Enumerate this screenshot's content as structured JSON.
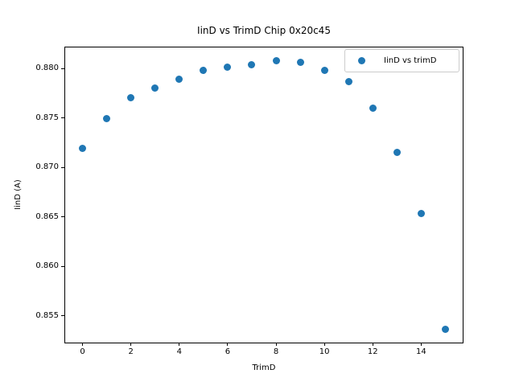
{
  "chart_data": {
    "type": "scatter",
    "title": "IinD vs TrimD Chip 0x20c45",
    "xlabel": "TrimD",
    "ylabel": "IinD (A)",
    "legend": {
      "entries": [
        "IinD vs trimD"
      ],
      "position": "upper right"
    },
    "series": [
      {
        "name": "IinD vs trimD",
        "marker": "circle",
        "color": "#1f77b4",
        "x": [
          0,
          1,
          2,
          3,
          4,
          5,
          6,
          7,
          8,
          9,
          10,
          11,
          12,
          13,
          14,
          15
        ],
        "y": [
          0.8719,
          0.8749,
          0.877,
          0.878,
          0.8789,
          0.8798,
          0.8801,
          0.8804,
          0.8808,
          0.8806,
          0.8798,
          0.8787,
          0.876,
          0.8715,
          0.8653,
          0.8536
        ]
      }
    ],
    "xlim": [
      -0.75,
      15.75
    ],
    "ylim": [
      0.8522,
      0.8822
    ],
    "xticks": [
      0,
      2,
      4,
      6,
      8,
      10,
      12,
      14
    ],
    "xtick_labels": [
      "0",
      "2",
      "4",
      "6",
      "8",
      "10",
      "12",
      "14"
    ],
    "yticks": [
      0.855,
      0.86,
      0.865,
      0.87,
      0.875,
      0.88
    ],
    "ytick_labels": [
      "0.855",
      "0.860",
      "0.865",
      "0.870",
      "0.875",
      "0.880"
    ],
    "grid": false,
    "background": "#ffffff",
    "text_color": "#000000"
  }
}
